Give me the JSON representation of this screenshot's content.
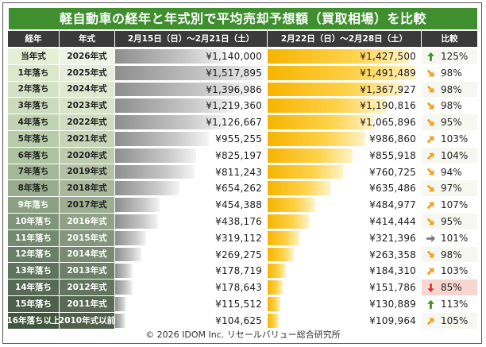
{
  "title": "軽自動車の経年と年式別で平均売却予想額（買取相場）を比較",
  "headers": {
    "age": "経年",
    "model_year": "年式",
    "prev_period": "2月15日（日）～2月21日（土）",
    "cur_period": "2月22日（日）～2月28日（土）",
    "ratio": "比較"
  },
  "colors": {
    "title_bg": "#3f8f2f",
    "header_bg": "#3a3a3a",
    "prev_bar": "#9a9a9a",
    "cur_bar": "#f6b400",
    "up_arrow": "#3f8f2f",
    "diag_arrow": "#f0a020",
    "flat_arrow": "#7a7a7a",
    "down_arrow": "#e0302b",
    "highlight_row": "#f6d6cf"
  },
  "chart_data": {
    "type": "table",
    "title": "軽自動車の経年と年式別で平均売却予想額（買取相場）を比較",
    "columns": [
      "経年",
      "年式",
      "2月15日（日）～2月21日（土）",
      "2月22日（日）～2月28日（土）",
      "比較"
    ],
    "series": [
      {
        "name": "2月15日（日）～2月21日（土）",
        "values": [
          1140000,
          1517895,
          1396986,
          1219360,
          1126667,
          955255,
          825197,
          811243,
          654262,
          454388,
          438176,
          319112,
          269275,
          178719,
          178643,
          115512,
          104625
        ]
      },
      {
        "name": "2月22日（日）～2月28日（土）",
        "values": [
          1427500,
          1491489,
          1367927,
          1190816,
          1065896,
          986860,
          855918,
          760725,
          635486,
          484977,
          414444,
          321396,
          263358,
          184310,
          151786,
          130889,
          109964
        ]
      }
    ],
    "rows": [
      {
        "age": "当年式",
        "year": "2026年式",
        "prev": "¥1,140,000",
        "cur": "¥1,427,500",
        "ratio": "125%",
        "arrow": "up",
        "prev_value": 1140000,
        "cur_value": 1427500
      },
      {
        "age": "1年落ち",
        "year": "2025年式",
        "prev": "¥1,517,895",
        "cur": "¥1,491,489",
        "ratio": "98%",
        "arrow": "down-right",
        "prev_value": 1517895,
        "cur_value": 1491489
      },
      {
        "age": "2年落ち",
        "year": "2024年式",
        "prev": "¥1,396,986",
        "cur": "¥1,367,927",
        "ratio": "98%",
        "arrow": "down-right",
        "prev_value": 1396986,
        "cur_value": 1367927
      },
      {
        "age": "3年落ち",
        "year": "2023年式",
        "prev": "¥1,219,360",
        "cur": "¥1,190,816",
        "ratio": "98%",
        "arrow": "down-right",
        "prev_value": 1219360,
        "cur_value": 1190816
      },
      {
        "age": "4年落ち",
        "year": "2022年式",
        "prev": "¥1,126,667",
        "cur": "¥1,065,896",
        "ratio": "95%",
        "arrow": "down-right",
        "prev_value": 1126667,
        "cur_value": 1065896
      },
      {
        "age": "5年落ち",
        "year": "2021年式",
        "prev": "¥955,255",
        "cur": "¥986,860",
        "ratio": "103%",
        "arrow": "up-right",
        "prev_value": 955255,
        "cur_value": 986860
      },
      {
        "age": "6年落ち",
        "year": "2020年式",
        "prev": "¥825,197",
        "cur": "¥855,918",
        "ratio": "104%",
        "arrow": "up-right",
        "prev_value": 825197,
        "cur_value": 855918
      },
      {
        "age": "7年落ち",
        "year": "2019年式",
        "prev": "¥811,243",
        "cur": "¥760,725",
        "ratio": "94%",
        "arrow": "down-right",
        "prev_value": 811243,
        "cur_value": 760725
      },
      {
        "age": "8年落ち",
        "year": "2018年式",
        "prev": "¥654,262",
        "cur": "¥635,486",
        "ratio": "97%",
        "arrow": "down-right",
        "prev_value": 654262,
        "cur_value": 635486
      },
      {
        "age": "9年落ち",
        "year": "2017年式",
        "prev": "¥454,388",
        "cur": "¥484,977",
        "ratio": "107%",
        "arrow": "up-right",
        "prev_value": 454388,
        "cur_value": 484977
      },
      {
        "age": "10年落ち",
        "year": "2016年式",
        "prev": "¥438,176",
        "cur": "¥414,444",
        "ratio": "95%",
        "arrow": "down-right",
        "prev_value": 438176,
        "cur_value": 414444
      },
      {
        "age": "11年落ち",
        "year": "2015年式",
        "prev": "¥319,112",
        "cur": "¥321,396",
        "ratio": "101%",
        "arrow": "flat",
        "prev_value": 319112,
        "cur_value": 321396
      },
      {
        "age": "12年落ち",
        "year": "2014年式",
        "prev": "¥269,275",
        "cur": "¥263,358",
        "ratio": "98%",
        "arrow": "down-right",
        "prev_value": 269275,
        "cur_value": 263358
      },
      {
        "age": "13年落ち",
        "year": "2013年式",
        "prev": "¥178,719",
        "cur": "¥184,310",
        "ratio": "103%",
        "arrow": "up-right",
        "prev_value": 178719,
        "cur_value": 184310
      },
      {
        "age": "14年落ち",
        "year": "2012年式",
        "prev": "¥178,643",
        "cur": "¥151,786",
        "ratio": "85%",
        "arrow": "down",
        "highlight": true,
        "prev_value": 178643,
        "cur_value": 151786
      },
      {
        "age": "15年落ち",
        "year": "2011年式",
        "prev": "¥115,512",
        "cur": "¥130,889",
        "ratio": "113%",
        "arrow": "up",
        "prev_value": 115512,
        "cur_value": 130889
      },
      {
        "age": "16年落ち以上",
        "year": "2010年式以前",
        "prev": "¥104,625",
        "cur": "¥109,964",
        "ratio": "105%",
        "arrow": "up-right",
        "prev_value": 104625,
        "cur_value": 109964
      }
    ]
  },
  "footer": "© 2026 IDOM Inc. リセールバリュー総合研究所"
}
